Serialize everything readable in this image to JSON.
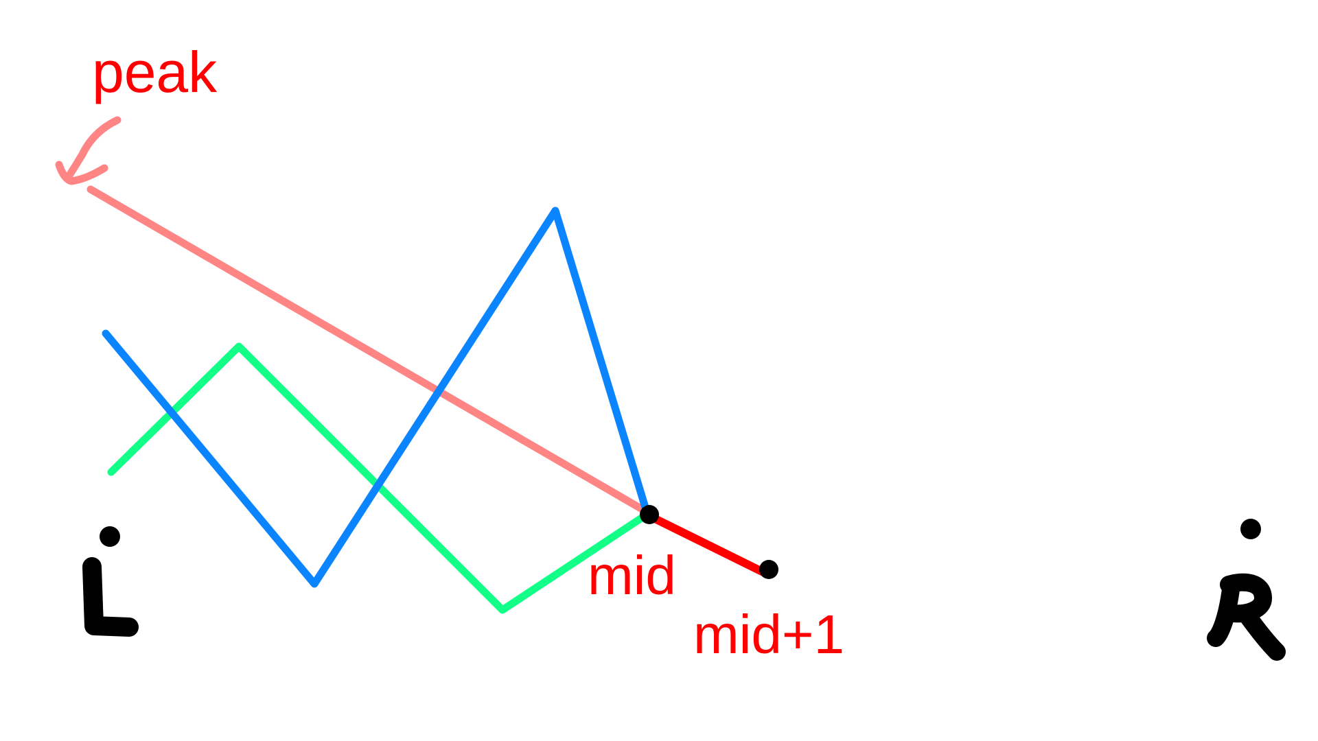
{
  "labels": {
    "peak": "peak",
    "mid": "mid",
    "mid_plus_1": "mid+1",
    "left_end": "L",
    "right_end": "R"
  },
  "colors": {
    "background": "#ffffff",
    "peak_line": "#ff8585",
    "peak_text": "#ff0000",
    "blue_path": "#0a84ff",
    "green_path": "#12ff88",
    "mid_segment": "#ff0000",
    "points": "#000000",
    "index_text": "#ff0000"
  }
}
